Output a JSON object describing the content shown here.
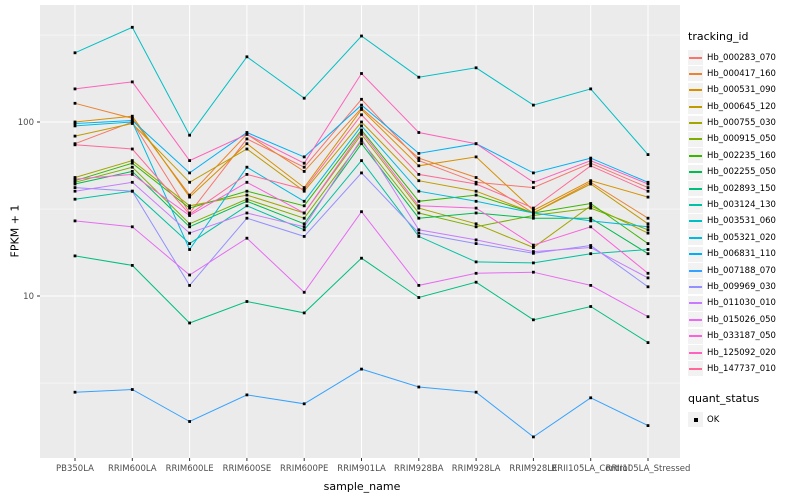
{
  "chart_data": {
    "type": "line",
    "title": "",
    "xlabel": "sample_name",
    "ylabel": "FPKM + 1",
    "y_scale": "log10",
    "y_major_ticks": [
      100,
      10
    ],
    "y_minor_ticks": [
      316,
      31.6,
      3.16
    ],
    "grid": "on",
    "legend_position": "right",
    "point_marker": "black-square",
    "categories": [
      "PB350LA",
      "RRIM600LA",
      "RRIM600LE",
      "RRIM600SE",
      "RRIM600PE",
      "RRIM901LA",
      "RRIM928BA",
      "RRIM928LA",
      "RRIM928LE",
      "RRII105LA_Control",
      "RRII105LA_Stressed"
    ],
    "legend": {
      "color_title": "tracking_id",
      "shape_title": "quant_status",
      "shape_items": [
        {
          "label": "OK"
        }
      ]
    },
    "series": [
      {
        "name": "Hb_000283_070",
        "color": "#F8766D",
        "values": [
          75,
          100,
          30,
          80,
          55,
          135,
          60,
          45,
          42,
          58,
          42
        ]
      },
      {
        "name": "Hb_000417_160",
        "color": "#EA8331",
        "values": [
          128,
          105,
          38,
          85,
          52,
          120,
          62,
          48,
          30,
          45,
          28
        ]
      },
      {
        "name": "Hb_000531_090",
        "color": "#D89000",
        "values": [
          100,
          108,
          37,
          75,
          42,
          118,
          56,
          63,
          31,
          46,
          37
        ]
      },
      {
        "name": "Hb_000645_120",
        "color": "#C09B00",
        "values": [
          83,
          98,
          45,
          70,
          40,
          100,
          46,
          40,
          30,
          44,
          26
        ]
      },
      {
        "name": "Hb_000755_030",
        "color": "#A3A500",
        "values": [
          48,
          60,
          33,
          38,
          30,
          85,
          32,
          26,
          19,
          33,
          23
        ]
      },
      {
        "name": "Hb_000915_050",
        "color": "#7CAE00",
        "values": [
          45,
          55,
          26,
          36,
          28,
          78,
          30,
          25,
          29,
          32,
          24
        ]
      },
      {
        "name": "Hb_002235_160",
        "color": "#39B600",
        "values": [
          46,
          58,
          32,
          40,
          33,
          90,
          35,
          38,
          30,
          34,
          20
        ]
      },
      {
        "name": "Hb_002255_050",
        "color": "#00BB4E",
        "values": [
          44,
          52,
          25,
          35,
          26,
          75,
          28,
          30,
          28,
          28,
          17.5
        ]
      },
      {
        "name": "Hb_002893_150",
        "color": "#00BF7D",
        "values": [
          17,
          15,
          7,
          9.3,
          8,
          16.5,
          9.8,
          12,
          7.3,
          8.7,
          5.4
        ]
      },
      {
        "name": "Hb_003124_130",
        "color": "#00C1A3",
        "values": [
          36,
          40,
          20,
          33,
          24,
          60,
          22,
          15.7,
          15.5,
          17.5,
          18.5
        ]
      },
      {
        "name": "Hb_003531_060",
        "color": "#00BFC4",
        "values": [
          250,
          350,
          84,
          237,
          137,
          312,
          181,
          205,
          125,
          155,
          65
        ]
      },
      {
        "name": "Hb_005321_020",
        "color": "#00BAE0",
        "values": [
          95,
          100,
          18.5,
          55,
          35,
          95,
          40,
          35,
          30,
          27,
          25
        ]
      },
      {
        "name": "Hb_006831_110",
        "color": "#00B0F6",
        "values": [
          98,
          102,
          51,
          87,
          63,
          125,
          66,
          75,
          51,
          62,
          45
        ]
      },
      {
        "name": "Hb_007188_070",
        "color": "#35A2FF",
        "values": [
          2.8,
          2.9,
          1.9,
          2.7,
          2.4,
          3.8,
          3.0,
          2.8,
          1.55,
          2.6,
          1.8
        ]
      },
      {
        "name": "Hb_009969_030",
        "color": "#9590FF",
        "values": [
          42,
          40,
          11.5,
          28,
          22,
          51,
          23,
          20,
          17.6,
          19.5,
          11.3
        ]
      },
      {
        "name": "Hb_011030_010",
        "color": "#C77CFF",
        "values": [
          40,
          45,
          23,
          30,
          25,
          80,
          24,
          21,
          18,
          19,
          12.7
        ]
      },
      {
        "name": "Hb_015026_050",
        "color": "#E76BF3",
        "values": [
          27,
          25,
          13.2,
          21.5,
          10.5,
          30.5,
          11.5,
          13.5,
          13.7,
          11.5,
          7.6
        ]
      },
      {
        "name": "Hb_033187_050",
        "color": "#FA62DB",
        "values": [
          47,
          50,
          29,
          45,
          30,
          88,
          33,
          32,
          19.6,
          25,
          13.5
        ]
      },
      {
        "name": "Hb_125092_020",
        "color": "#FF62BC",
        "values": [
          155,
          170,
          60,
          85,
          58,
          190,
          87,
          75,
          45,
          60,
          44
        ]
      },
      {
        "name": "Hb_147737_010",
        "color": "#FF6A98",
        "values": [
          74,
          70,
          29.5,
          50,
          41,
          110,
          50,
          44,
          32,
          56,
          40
        ]
      }
    ]
  },
  "colors": {
    "panel_bg": "#EBEBEB",
    "grid": "#FFFFFF",
    "axis_text": "#4D4D4D",
    "tick": "#333333",
    "point": "#000000",
    "legend_key_bg": "#F2F2F2",
    "text": "#000000"
  }
}
